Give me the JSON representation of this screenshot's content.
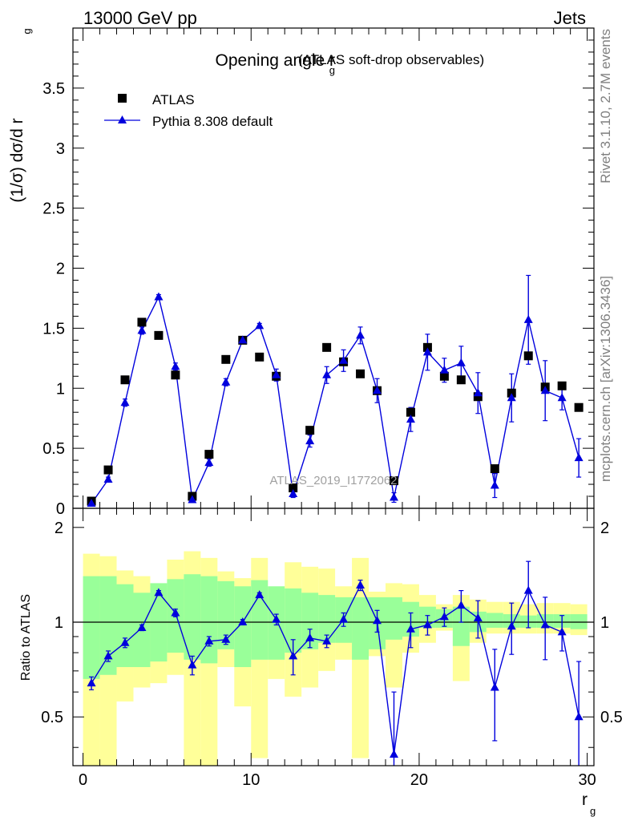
{
  "header": {
    "left": "13000 GeV pp",
    "right": "Jets"
  },
  "side_labels": {
    "rivet": "Rivet 3.1.10,  2.7M events",
    "mcplots": "mcplots.cern.ch [arXiv:1306.3436]"
  },
  "chart_data": {
    "type": "scatter",
    "title": "Opening angle r",
    "title_sub": "g",
    "title_suffix": "(ATLAS soft-drop observables)",
    "watermark": "ATLAS_2019_I1772062",
    "xlabel": "r",
    "xlabel_sub": "g",
    "ylabel_main": "(1/σ) dσ/d r",
    "ylabel_main_sub": "g",
    "ylabel_ratio": "Ratio to ATLAS",
    "xlim": [
      -0.6,
      30.4
    ],
    "ylim_main": [
      0,
      4.0
    ],
    "ylim_ratio": [
      0.35,
      2.3
    ],
    "log_ratio": true,
    "x_ticks": [
      0,
      10,
      20,
      30
    ],
    "y_ticks_main": [
      0,
      0.5,
      1,
      1.5,
      2,
      2.5,
      3,
      3.5
    ],
    "y_tick_labels_main": [
      "0",
      "0.5",
      "1",
      "1.5",
      "2",
      "2.5",
      "3",
      "3.5"
    ],
    "y_ticks_ratio": [
      0.5,
      1,
      2
    ],
    "y_tick_labels_ratio": [
      "0.5",
      "1",
      "2"
    ],
    "legend": [
      {
        "label": "ATLAS",
        "marker": "square",
        "color": "#000000"
      },
      {
        "label": "Pythia 8.308 default",
        "marker": "triangle",
        "color": "#0000dd"
      }
    ],
    "colors": {
      "data": "#000000",
      "mc": "#0000dd",
      "band_inner": "#99ff99",
      "band_outer": "#ffff99"
    },
    "x": [
      0.5,
      1.5,
      2.5,
      3.5,
      4.5,
      5.5,
      6.5,
      7.5,
      8.5,
      9.5,
      10.5,
      11.5,
      12.5,
      13.5,
      14.5,
      15.5,
      16.5,
      17.5,
      18.5,
      19.5,
      20.5,
      21.5,
      22.5,
      23.5,
      24.5,
      25.5,
      26.5,
      27.5,
      28.5,
      29.5
    ],
    "series": [
      {
        "name": "ATLAS",
        "values": [
          0.06,
          0.32,
          1.07,
          1.55,
          1.44,
          1.11,
          0.1,
          0.45,
          1.24,
          1.4,
          1.26,
          1.1,
          0.17,
          0.65,
          1.34,
          1.22,
          1.12,
          0.98,
          0.23,
          0.8,
          1.34,
          1.1,
          1.07,
          0.93,
          0.33,
          0.96,
          1.27,
          1.01,
          1.02,
          0.84
        ]
      },
      {
        "name": "Pythia 8.308 default",
        "values": [
          0.04,
          0.24,
          0.88,
          1.48,
          1.76,
          1.18,
          0.07,
          0.38,
          1.05,
          1.4,
          1.52,
          1.11,
          0.12,
          0.56,
          1.11,
          1.23,
          1.44,
          0.98,
          0.09,
          0.74,
          1.3,
          1.15,
          1.21,
          0.96,
          0.19,
          0.92,
          1.57,
          0.98,
          0.92,
          0.42
        ],
        "errors": [
          0.01,
          0.02,
          0.03,
          0.03,
          0.02,
          0.03,
          0.02,
          0.03,
          0.03,
          0.03,
          0.02,
          0.05,
          0.03,
          0.05,
          0.07,
          0.09,
          0.07,
          0.1,
          0.04,
          0.1,
          0.15,
          0.1,
          0.14,
          0.17,
          0.1,
          0.2,
          0.37,
          0.25,
          0.1,
          0.16
        ]
      }
    ],
    "ratio": [
      0.64,
      0.78,
      0.86,
      0.96,
      1.24,
      1.07,
      0.73,
      0.87,
      0.88,
      1.0,
      1.22,
      1.02,
      0.78,
      0.89,
      0.87,
      1.02,
      1.31,
      1.01,
      0.38,
      0.95,
      0.98,
      1.04,
      1.13,
      1.03,
      0.62,
      0.97,
      1.26,
      0.98,
      0.93,
      0.5
    ],
    "ratio_errors": [
      0.03,
      0.03,
      0.03,
      0.02,
      0.02,
      0.03,
      0.05,
      0.03,
      0.03,
      0.02,
      0.02,
      0.04,
      0.1,
      0.06,
      0.04,
      0.05,
      0.05,
      0.08,
      0.22,
      0.12,
      0.07,
      0.07,
      0.13,
      0.14,
      0.2,
      0.18,
      0.3,
      0.22,
      0.12,
      0.25
    ],
    "band_inner": [
      [
        0.66,
        1.4
      ],
      [
        0.68,
        1.4
      ],
      [
        0.72,
        1.32
      ],
      [
        0.72,
        1.24
      ],
      [
        0.75,
        1.33
      ],
      [
        0.8,
        1.37
      ],
      [
        0.76,
        1.42
      ],
      [
        0.74,
        1.4
      ],
      [
        0.82,
        1.35
      ],
      [
        0.72,
        1.3
      ],
      [
        0.76,
        1.36
      ],
      [
        0.76,
        1.3
      ],
      [
        0.8,
        1.28
      ],
      [
        0.82,
        1.24
      ],
      [
        0.86,
        1.22
      ],
      [
        0.86,
        1.2
      ],
      [
        0.76,
        1.2
      ],
      [
        0.82,
        1.2
      ],
      [
        0.88,
        1.2
      ],
      [
        0.9,
        1.16
      ],
      [
        0.96,
        1.12
      ],
      [
        0.96,
        1.1
      ],
      [
        0.84,
        1.12
      ],
      [
        0.93,
        1.08
      ],
      [
        0.96,
        1.07
      ],
      [
        0.96,
        1.06
      ],
      [
        0.96,
        1.05
      ],
      [
        0.96,
        1.06
      ],
      [
        0.96,
        1.06
      ],
      [
        0.95,
        1.06
      ]
    ],
    "band_outer": [
      [
        0.35,
        1.65
      ],
      [
        0.35,
        1.62
      ],
      [
        0.56,
        1.46
      ],
      [
        0.62,
        1.4
      ],
      [
        0.64,
        1.24
      ],
      [
        0.68,
        1.58
      ],
      [
        0.35,
        1.68
      ],
      [
        0.35,
        1.6
      ],
      [
        0.72,
        1.45
      ],
      [
        0.54,
        1.38
      ],
      [
        0.37,
        1.6
      ],
      [
        0.66,
        1.28
      ],
      [
        0.58,
        1.55
      ],
      [
        0.62,
        1.5
      ],
      [
        0.7,
        1.48
      ],
      [
        0.76,
        1.3
      ],
      [
        0.37,
        1.6
      ],
      [
        0.78,
        1.25
      ],
      [
        0.62,
        1.33
      ],
      [
        0.8,
        1.32
      ],
      [
        0.86,
        1.22
      ],
      [
        0.94,
        1.14
      ],
      [
        0.65,
        1.22
      ],
      [
        0.86,
        1.18
      ],
      [
        0.92,
        1.16
      ],
      [
        0.92,
        1.16
      ],
      [
        0.92,
        1.14
      ],
      [
        0.92,
        1.15
      ],
      [
        0.92,
        1.15
      ],
      [
        0.91,
        1.14
      ]
    ]
  }
}
